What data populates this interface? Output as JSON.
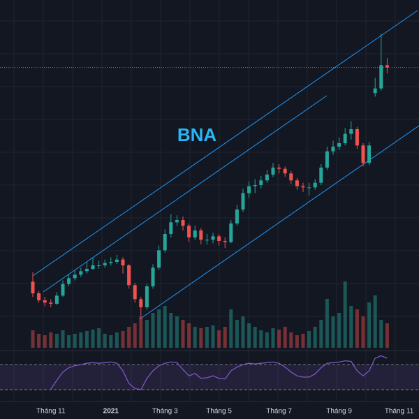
{
  "chart_data": {
    "type": "candlestick",
    "title": "BNA",
    "categories": [
      null,
      null,
      null,
      "Tháng 11",
      null,
      null,
      null,
      null,
      null,
      null,
      null,
      null,
      null,
      "2021",
      null,
      null,
      null,
      null,
      null,
      null,
      null,
      null,
      "Tháng 3",
      null,
      null,
      null,
      null,
      null,
      null,
      null,
      null,
      "Tháng 5",
      null,
      null,
      null,
      null,
      null,
      null,
      null,
      null,
      null,
      "Tháng 7",
      null,
      null,
      null,
      null,
      null,
      null,
      null,
      null,
      null,
      "Tháng 9",
      null,
      null,
      null,
      null,
      null,
      null,
      null,
      null,
      null,
      "Tháng 11"
    ],
    "open": [
      10.8,
      9.8,
      9.2,
      9.0,
      8.9,
      9.6,
      10.6,
      11.1,
      11.4,
      11.7,
      11.9,
      12.2,
      12.2,
      12.4,
      12.5,
      12.7,
      12.2,
      10.5,
      9.3,
      8.6,
      10.4,
      12.0,
      13.5,
      14.9,
      15.9,
      16.1,
      15.6,
      14.6,
      15.2,
      14.4,
      14.4,
      14.7,
      14.3,
      14.2,
      15.8,
      17.0,
      18.4,
      19.0,
      19.1,
      19.5,
      20.0,
      20.6,
      20.5,
      20.1,
      19.5,
      19.0,
      18.9,
      18.9,
      19.3,
      20.6,
      22.0,
      22.4,
      22.7,
      23.5,
      23.9,
      22.5,
      21.0,
      27.0,
      27.4,
      29.4,
      null,
      null
    ],
    "high": [
      11.6,
      10.0,
      9.5,
      9.3,
      9.9,
      10.9,
      11.4,
      11.8,
      12.0,
      12.5,
      12.9,
      12.6,
      12.7,
      12.9,
      13.1,
      12.9,
      12.3,
      10.7,
      9.5,
      10.6,
      12.3,
      13.9,
      15.3,
      16.6,
      16.5,
      16.4,
      15.8,
      15.6,
      15.4,
      14.9,
      15.0,
      14.9,
      14.6,
      16.1,
      17.4,
      18.8,
      19.4,
      19.6,
      19.9,
      20.4,
      21.0,
      20.9,
      20.7,
      20.3,
      19.7,
      19.3,
      19.3,
      19.6,
      20.9,
      22.4,
      22.9,
      23.2,
      24.0,
      24.6,
      24.1,
      22.7,
      22.8,
      28.3,
      32.1,
      30.0,
      null,
      null
    ],
    "low": [
      9.5,
      9.0,
      8.7,
      8.6,
      8.8,
      9.5,
      10.4,
      10.9,
      11.2,
      11.5,
      11.8,
      11.9,
      12.0,
      12.2,
      12.3,
      11.5,
      10.2,
      9.0,
      7.8,
      8.4,
      10.2,
      11.8,
      13.3,
      14.6,
      15.6,
      15.2,
      14.2,
      14.4,
      14.0,
      14.0,
      14.1,
      13.9,
      13.7,
      14.1,
      15.6,
      16.8,
      18.0,
      18.4,
      18.8,
      19.3,
      19.8,
      20.1,
      19.8,
      19.2,
      18.7,
      18.5,
      18.2,
      18.7,
      19.1,
      20.4,
      21.7,
      22.1,
      22.5,
      23.0,
      22.2,
      20.7,
      20.8,
      26.7,
      27.2,
      28.7,
      null,
      null
    ],
    "close": [
      9.8,
      9.2,
      9.0,
      8.9,
      9.6,
      10.6,
      11.1,
      11.4,
      11.7,
      11.9,
      12.2,
      12.2,
      12.4,
      12.5,
      12.7,
      12.2,
      10.5,
      9.3,
      8.6,
      10.4,
      12.0,
      13.5,
      14.9,
      15.9,
      16.1,
      15.6,
      14.6,
      15.2,
      14.4,
      14.4,
      14.7,
      14.3,
      14.2,
      15.8,
      17.0,
      18.4,
      19.0,
      19.1,
      19.5,
      20.0,
      20.6,
      20.5,
      20.1,
      19.5,
      19.0,
      18.9,
      18.9,
      19.3,
      20.6,
      22.0,
      22.4,
      22.7,
      23.5,
      23.9,
      22.5,
      21.0,
      22.5,
      27.4,
      29.4,
      29.2,
      null,
      null
    ],
    "ylim": [
      5,
      35
    ],
    "volume": [
      25,
      20,
      18,
      22,
      20,
      25,
      18,
      20,
      22,
      24,
      26,
      28,
      20,
      18,
      22,
      24,
      30,
      35,
      45,
      40,
      50,
      55,
      60,
      50,
      45,
      40,
      35,
      30,
      28,
      30,
      32,
      25,
      30,
      55,
      40,
      45,
      35,
      30,
      25,
      22,
      28,
      26,
      30,
      22,
      18,
      20,
      24,
      30,
      40,
      70,
      45,
      50,
      95,
      60,
      55,
      45,
      65,
      75,
      40,
      35,
      null,
      null
    ],
    "volume_lim": [
      0,
      100
    ],
    "rsi": [
      null,
      null,
      null,
      31,
      45,
      58,
      65,
      68,
      70,
      72,
      73,
      72,
      73,
      74,
      72,
      60,
      40,
      32,
      30,
      48,
      60,
      68,
      72,
      74,
      73,
      62,
      52,
      56,
      48,
      49,
      52,
      48,
      47,
      60,
      66,
      70,
      72,
      71,
      72,
      73,
      74,
      72,
      66,
      58,
      52,
      50,
      50,
      55,
      65,
      72,
      73,
      74,
      76,
      75,
      60,
      52,
      60,
      80,
      84,
      80,
      null,
      null
    ],
    "rsi_lim": [
      0,
      100
    ],
    "rsi_bands": [
      30,
      70
    ],
    "up_color": "#26a69a",
    "down_color": "#ef5350",
    "rsi_color": "#7e57c2"
  }
}
